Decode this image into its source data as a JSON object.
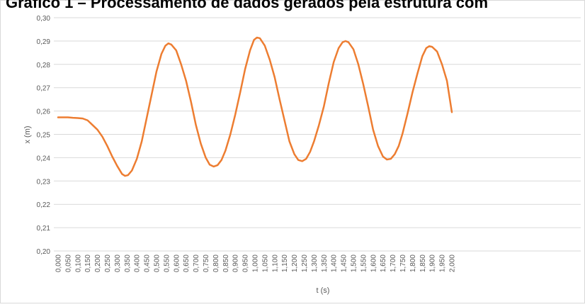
{
  "chart_data": {
    "type": "line",
    "title": "Gráfico 1 – Processamento de dados gerados pela estrutura com",
    "xlabel": "t (s)",
    "ylabel": "x (m)",
    "ylim": [
      0.2,
      0.3
    ],
    "y_ticks": [
      "0,20",
      "0,21",
      "0,22",
      "0,23",
      "0,24",
      "0,25",
      "0,26",
      "0,27",
      "0,28",
      "0,29",
      "0,30"
    ],
    "x_ticks": [
      "0,000",
      "0,050",
      "0,100",
      "0,150",
      "0,200",
      "0,250",
      "0,300",
      "0,350",
      "0,400",
      "0,450",
      "0,500",
      "0,550",
      "0,600",
      "0,650",
      "0,700",
      "0,750",
      "0,800",
      "0,850",
      "0,900",
      "0,950",
      "1,000",
      "1,050",
      "1,100",
      "1,150",
      "1,200",
      "1,250",
      "1,300",
      "1,350",
      "1,400",
      "1,450",
      "1,500",
      "1,550",
      "1,600",
      "1,650",
      "1,700",
      "1,750",
      "1,800",
      "1,850",
      "1,900",
      "1,950",
      "2,000"
    ],
    "grid": true,
    "series_color": "#ED7D31",
    "gridline_color": "#D9D9D9",
    "series": [
      {
        "x": [
          0.0,
          0.025,
          0.05,
          0.075,
          0.1,
          0.125,
          0.15,
          0.175,
          0.2,
          0.225,
          0.25,
          0.275,
          0.3,
          0.325,
          0.34,
          0.355,
          0.375,
          0.4,
          0.425,
          0.45,
          0.475,
          0.5,
          0.525,
          0.545,
          0.56,
          0.575,
          0.6,
          0.625,
          0.65,
          0.675,
          0.7,
          0.725,
          0.75,
          0.77,
          0.79,
          0.81,
          0.83,
          0.85,
          0.875,
          0.9,
          0.925,
          0.95,
          0.975,
          0.995,
          1.01,
          1.025,
          1.05,
          1.075,
          1.1,
          1.125,
          1.15,
          1.175,
          1.2,
          1.22,
          1.24,
          1.26,
          1.28,
          1.3,
          1.325,
          1.35,
          1.375,
          1.4,
          1.425,
          1.445,
          1.46,
          1.475,
          1.5,
          1.525,
          1.55,
          1.575,
          1.6,
          1.625,
          1.65,
          1.67,
          1.69,
          1.71,
          1.73,
          1.75,
          1.775,
          1.8,
          1.825,
          1.85,
          1.87,
          1.885,
          1.9,
          1.925,
          1.95,
          1.975,
          2.0
        ],
        "y": [
          0.2573,
          0.2573,
          0.2573,
          0.2571,
          0.257,
          0.2568,
          0.256,
          0.254,
          0.252,
          0.249,
          0.245,
          0.2405,
          0.2365,
          0.233,
          0.2322,
          0.2325,
          0.2345,
          0.2395,
          0.247,
          0.257,
          0.267,
          0.277,
          0.2845,
          0.288,
          0.289,
          0.2885,
          0.286,
          0.28,
          0.273,
          0.264,
          0.254,
          0.246,
          0.24,
          0.237,
          0.2362,
          0.2368,
          0.239,
          0.243,
          0.25,
          0.2585,
          0.268,
          0.278,
          0.286,
          0.2905,
          0.2915,
          0.2912,
          0.288,
          0.282,
          0.2745,
          0.265,
          0.256,
          0.247,
          0.2415,
          0.239,
          0.2385,
          0.2395,
          0.2425,
          0.247,
          0.254,
          0.262,
          0.272,
          0.281,
          0.287,
          0.2895,
          0.29,
          0.2895,
          0.2865,
          0.28,
          0.2715,
          0.262,
          0.252,
          0.245,
          0.2405,
          0.2392,
          0.2395,
          0.2415,
          0.245,
          0.2505,
          0.259,
          0.268,
          0.276,
          0.2835,
          0.287,
          0.2878,
          0.2875,
          0.2855,
          0.28,
          0.273,
          0.2595
        ]
      }
    ]
  }
}
